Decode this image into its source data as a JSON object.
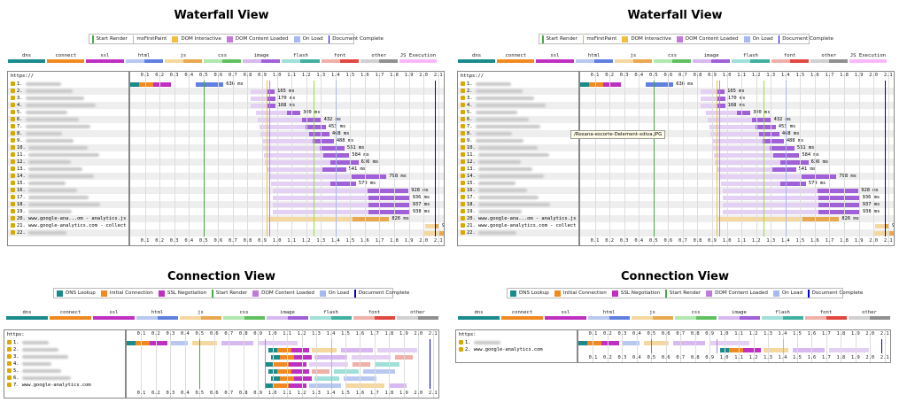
{
  "colors": {
    "start_render": "#44aa44",
    "ms_first_paint": "#99dd44",
    "dom_interactive": "#f0c040",
    "dom_content_loaded": "#c07ad8",
    "on_load": "#a8b8f0",
    "document_complete": "#0000cc",
    "dns": "#1a8a8a",
    "connect": "#f08a20",
    "ssl": "#c030c0"
  },
  "waterfall_title": "Waterfall View",
  "connection_title": "Connection View",
  "waterfall_legend": [
    "Start Render",
    "msFirstPaint",
    "DOM Interactive",
    "DOM Content Loaded",
    "On Load",
    "Document Complete"
  ],
  "connection_legend": [
    "DNS Lookup",
    "Initial Connection",
    "SSL Negotiation",
    "Start Render",
    "DOM Content Loaded",
    "On Load",
    "Document Complete"
  ],
  "request_types": [
    "dns",
    "connect",
    "ssl",
    "html",
    "js",
    "css",
    "image",
    "flash",
    "font",
    "other",
    "JS Execution"
  ],
  "request_types_conn": [
    "dns",
    "connect",
    "ssl",
    "html",
    "js",
    "css",
    "image",
    "flash",
    "font",
    "other"
  ],
  "ticks": [
    "0.1",
    "0.2",
    "0.3",
    "0.4",
    "0.5",
    "0.6",
    "0.7",
    "0.8",
    "0.9",
    "1.0",
    "1.1",
    "1.2",
    "1.3",
    "1.4",
    "1.5",
    "1.6",
    "1.7",
    "1.8",
    "1.9",
    "2.0",
    "2.1"
  ],
  "header_url": "https://",
  "tooltip_text": "/Roxana-escorte-Delement-xdiva.JPG",
  "chart_data": [
    {
      "type": "bar",
      "title": "Waterfall View",
      "xlabel": "",
      "xlim": [
        0,
        2.15
      ],
      "markers": {
        "start_render": 0.5,
        "ms_first_paint": 1.25,
        "dom_interactive": 0.93,
        "dom_content_loaded": 0.95,
        "on_load": 1.4,
        "document_complete": 2.08
      },
      "rows": [
        {
          "label": "1.",
          "start": 0.0,
          "end": 0.636,
          "ms": "636 ms"
        },
        {
          "label": "2.",
          "start": 0.82,
          "end": 0.985,
          "ms": "165 ms"
        },
        {
          "label": "3.",
          "start": 0.82,
          "end": 0.99,
          "ms": "170 ms"
        },
        {
          "label": "4.",
          "start": 0.82,
          "end": 0.988,
          "ms": "168 ms"
        },
        {
          "label": "5.",
          "start": 0.86,
          "end": 1.16,
          "ms": "300 ms"
        },
        {
          "label": "6.",
          "start": 0.87,
          "end": 1.302,
          "ms": "432 ms"
        },
        {
          "label": "7.",
          "start": 0.88,
          "end": 1.333,
          "ms": "453 ms"
        },
        {
          "label": "8.",
          "start": 0.89,
          "end": 1.358,
          "ms": "468 ms"
        },
        {
          "label": "9.",
          "start": 0.9,
          "end": 1.388,
          "ms": "488 ms"
        },
        {
          "label": "10.",
          "start": 0.9,
          "end": 1.461,
          "ms": "561 ms"
        },
        {
          "label": "11.",
          "start": 0.91,
          "end": 1.494,
          "ms": "584 ms"
        },
        {
          "label": "12.",
          "start": 0.92,
          "end": 1.556,
          "ms": "636 ms"
        },
        {
          "label": "13.",
          "start": 0.93,
          "end": 1.471,
          "ms": "541 ms"
        },
        {
          "label": "14.",
          "start": 0.95,
          "end": 1.748,
          "ms": "798 ms"
        },
        {
          "label": "15.",
          "start": 0.96,
          "end": 1.539,
          "ms": "579 ms"
        },
        {
          "label": "16.",
          "start": 0.97,
          "end": 1.898,
          "ms": "928 ms"
        },
        {
          "label": "17.",
          "start": 0.97,
          "end": 1.906,
          "ms": "936 ms"
        },
        {
          "label": "18.",
          "start": 0.97,
          "end": 1.907,
          "ms": "937 ms"
        },
        {
          "label": "19.",
          "start": 0.97,
          "end": 1.908,
          "ms": "938 ms"
        },
        {
          "label": "20. www.google-ana...om - analytics.js",
          "start": 0.94,
          "end": 1.766,
          "ms": "826 ms"
        },
        {
          "label": "21. www.google-analytics.com - collect",
          "start": 2.01,
          "end": 2.107,
          "ms": "97 ms"
        },
        {
          "label": "22.",
          "start": 2.0,
          "end": 2.15,
          "ms": "150 ms"
        }
      ]
    },
    {
      "type": "bar",
      "title": "Connection View",
      "xlim": [
        0,
        2.15
      ],
      "rows": [
        {
          "label": "1."
        },
        {
          "label": "2."
        },
        {
          "label": "3."
        },
        {
          "label": "4."
        },
        {
          "label": "5."
        },
        {
          "label": "6."
        },
        {
          "label": "7. www.google-analytics.com"
        }
      ]
    },
    {
      "type": "bar",
      "title": "Connection View",
      "xlim": [
        0,
        2.15
      ],
      "rows": [
        {
          "label": "1."
        },
        {
          "label": "2. www.google-analytics.com"
        }
      ]
    }
  ]
}
